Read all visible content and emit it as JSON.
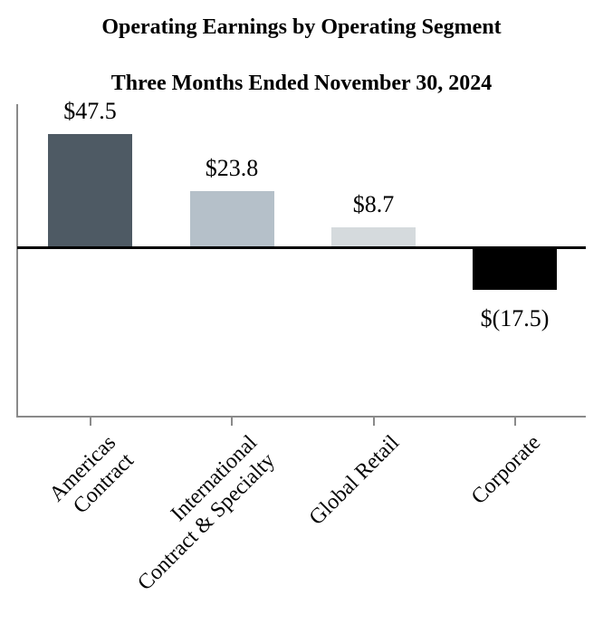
{
  "title": {
    "line1": "Operating Earnings by Operating Segment",
    "line2": "Three Months Ended November 30, 2024"
  },
  "chart_data": {
    "type": "bar",
    "title": "Operating Earnings by Operating Segment",
    "subtitle": "Three Months Ended November 30, 2024",
    "categories": [
      "Americas\nContract",
      "International\nContract & Specialty",
      "Global Retail",
      "Corporate"
    ],
    "values": [
      47.5,
      23.8,
      8.7,
      -17.5
    ],
    "value_labels": [
      "$47.5",
      "$23.8",
      "$8.7",
      "$(17.5)"
    ],
    "bar_colors": [
      "#4e5a64",
      "#b5c0c9",
      "#d5dadd",
      "#000000"
    ],
    "xlabel": "",
    "ylabel": "",
    "ylim": [
      -70,
      60
    ],
    "baseline_value": 0,
    "grid": false,
    "legend": "none",
    "y_tick_labels": "none",
    "x_tick_label_rotation_deg": -45,
    "axis_color": "#8a8a8a",
    "zero_line_color": "#000000"
  }
}
